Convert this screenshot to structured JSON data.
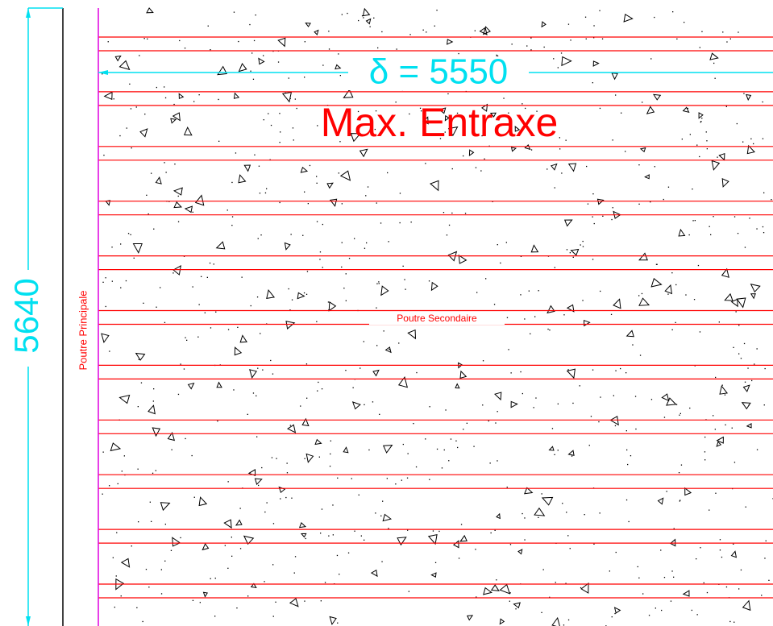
{
  "dimension_horizontal": {
    "label": "δ = 5550"
  },
  "dimension_vertical": {
    "label": "5640"
  },
  "title": "Max. Entraxe",
  "main_beam": {
    "label": "Poutre Principale"
  },
  "secondary_beam": {
    "label": "Poutre Secondaire"
  }
}
